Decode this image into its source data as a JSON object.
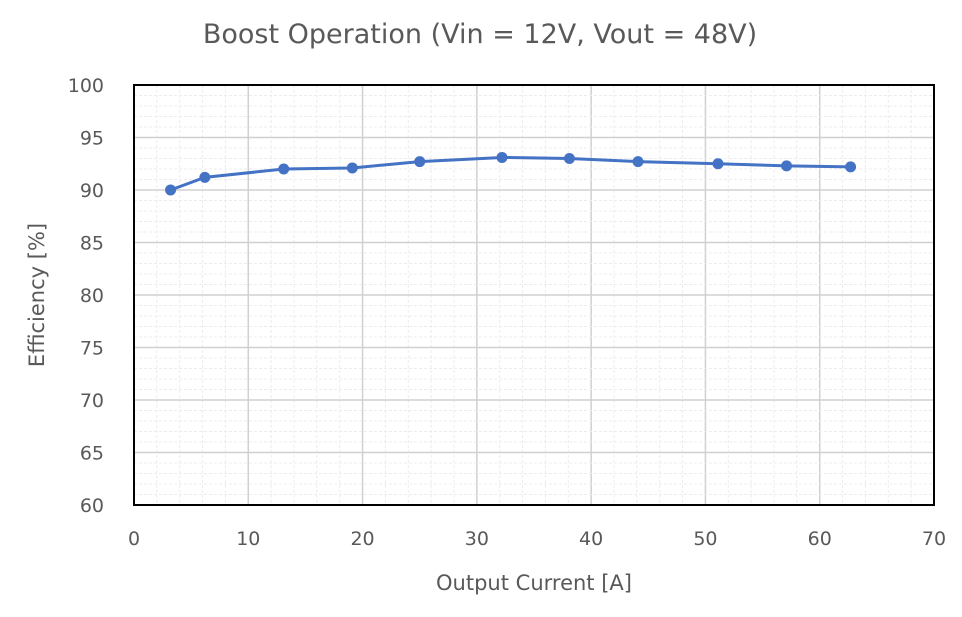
{
  "chart_data": {
    "type": "line",
    "title": "Boost Operation (Vin = 12V, Vout = 48V)",
    "xlabel": "Output Current [A]",
    "ylabel": "Efficiency [%]",
    "xlim": [
      0,
      70
    ],
    "ylim": [
      60,
      100
    ],
    "xticks": [
      0,
      10,
      20,
      30,
      40,
      50,
      60,
      70
    ],
    "yticks": [
      60,
      65,
      70,
      75,
      80,
      85,
      90,
      95,
      100
    ],
    "grid": true,
    "color": "#4472C4",
    "series": [
      {
        "x": [
          3.2,
          6.2,
          13.1,
          19.1,
          25.0,
          32.2,
          38.1,
          44.1,
          51.1,
          57.1,
          62.7
        ],
        "y": [
          90.0,
          91.2,
          92.0,
          92.1,
          92.7,
          93.1,
          93.0,
          92.7,
          92.5,
          92.3,
          92.2
        ]
      }
    ]
  }
}
